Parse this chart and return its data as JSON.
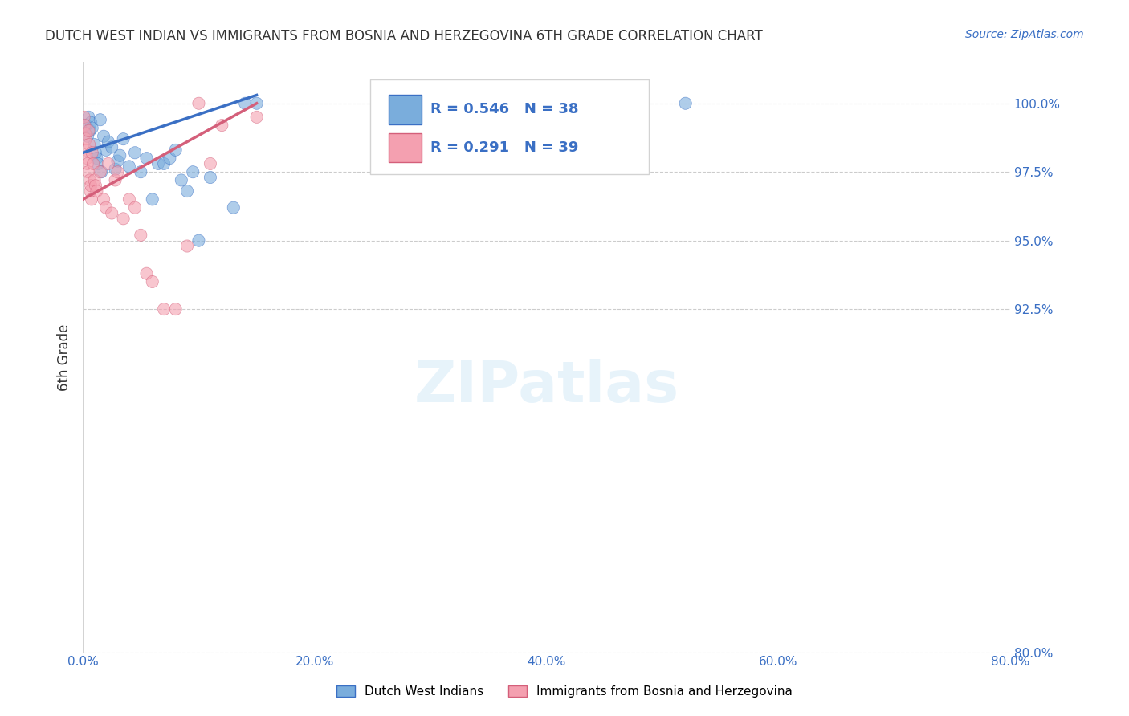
{
  "title": "DUTCH WEST INDIAN VS IMMIGRANTS FROM BOSNIA AND HERZEGOVINA 6TH GRADE CORRELATION CHART",
  "source": "Source: ZipAtlas.com",
  "ylabel": "6th Grade",
  "xlabel_ticks": [
    "0.0%",
    "20.0%",
    "40.0%",
    "60.0%",
    "80.0%"
  ],
  "xlabel_vals": [
    0.0,
    20.0,
    40.0,
    60.0,
    80.0
  ],
  "ylabel_ticks": [
    "80.0%",
    "92.5%",
    "95.0%",
    "97.5%",
    "100.0%"
  ],
  "ylabel_vals": [
    80.0,
    92.5,
    95.0,
    97.5,
    100.0
  ],
  "xlim": [
    0.0,
    80.0
  ],
  "ylim": [
    80.0,
    101.5
  ],
  "blue_color": "#7aaddc",
  "pink_color": "#f4a0b0",
  "blue_line_color": "#3a6fc4",
  "pink_line_color": "#d45f7a",
  "legend_R1": "R = 0.546",
  "legend_N1": "N = 38",
  "legend_R2": "R = 0.291",
  "legend_N2": "N = 39",
  "legend_label1": "Dutch West Indians",
  "legend_label2": "Immigrants from Bosnia and Herzegovina",
  "blue_scatter": {
    "x": [
      0.3,
      0.4,
      0.5,
      0.6,
      0.7,
      0.8,
      1.0,
      1.1,
      1.2,
      1.3,
      1.5,
      1.6,
      1.8,
      2.0,
      2.2,
      2.5,
      2.8,
      3.0,
      3.2,
      3.5,
      4.0,
      4.5,
      5.0,
      5.5,
      6.0,
      6.5,
      7.0,
      7.5,
      8.0,
      8.5,
      9.0,
      9.5,
      10.0,
      11.0,
      13.0,
      14.0,
      15.0,
      52.0
    ],
    "y": [
      99.2,
      98.8,
      99.5,
      99.0,
      99.3,
      99.1,
      98.5,
      98.2,
      98.0,
      97.8,
      99.4,
      97.5,
      98.8,
      98.3,
      98.6,
      98.4,
      97.6,
      97.9,
      98.1,
      98.7,
      97.7,
      98.2,
      97.5,
      98.0,
      96.5,
      97.8,
      97.8,
      98.0,
      98.3,
      97.2,
      96.8,
      97.5,
      95.0,
      97.3,
      96.2,
      100.0,
      100.0,
      100.0
    ],
    "sizes": [
      8,
      8,
      8,
      8,
      8,
      8,
      8,
      8,
      8,
      8,
      8,
      8,
      8,
      8,
      8,
      8,
      8,
      8,
      8,
      8,
      8,
      8,
      8,
      8,
      8,
      8,
      8,
      8,
      8,
      8,
      8,
      8,
      8,
      8,
      8,
      8,
      8,
      8
    ]
  },
  "pink_scatter": {
    "x": [
      0.1,
      0.15,
      0.2,
      0.25,
      0.3,
      0.35,
      0.4,
      0.45,
      0.5,
      0.55,
      0.6,
      0.65,
      0.7,
      0.75,
      0.8,
      0.9,
      1.0,
      1.1,
      1.2,
      1.5,
      1.8,
      2.0,
      2.2,
      2.5,
      2.8,
      3.0,
      3.5,
      4.0,
      4.5,
      5.0,
      5.5,
      6.0,
      7.0,
      8.0,
      9.0,
      10.0,
      11.0,
      12.0,
      15.0
    ],
    "y": [
      99.5,
      99.2,
      98.9,
      98.7,
      98.3,
      98.0,
      97.8,
      97.5,
      99.0,
      98.5,
      97.2,
      96.8,
      97.0,
      96.5,
      98.2,
      97.8,
      97.2,
      97.0,
      96.8,
      97.5,
      96.5,
      96.2,
      97.8,
      96.0,
      97.2,
      97.5,
      95.8,
      96.5,
      96.2,
      95.2,
      93.8,
      93.5,
      92.5,
      92.5,
      94.8,
      100.0,
      97.8,
      99.2,
      99.5
    ],
    "sizes": [
      8,
      8,
      8,
      8,
      8,
      8,
      8,
      8,
      8,
      8,
      8,
      8,
      8,
      8,
      8,
      8,
      8,
      8,
      8,
      8,
      8,
      8,
      8,
      8,
      8,
      8,
      8,
      8,
      8,
      8,
      8,
      8,
      8,
      8,
      8,
      8,
      8,
      8,
      8
    ]
  },
  "blue_line": {
    "x0": 0.0,
    "x1": 15.0,
    "y0": 98.2,
    "y1": 100.3
  },
  "pink_line": {
    "x0": 0.0,
    "x1": 15.0,
    "y0": 96.5,
    "y1": 100.0
  },
  "watermark": "ZIPatlas",
  "background_color": "#ffffff",
  "grid_color": "#cccccc"
}
